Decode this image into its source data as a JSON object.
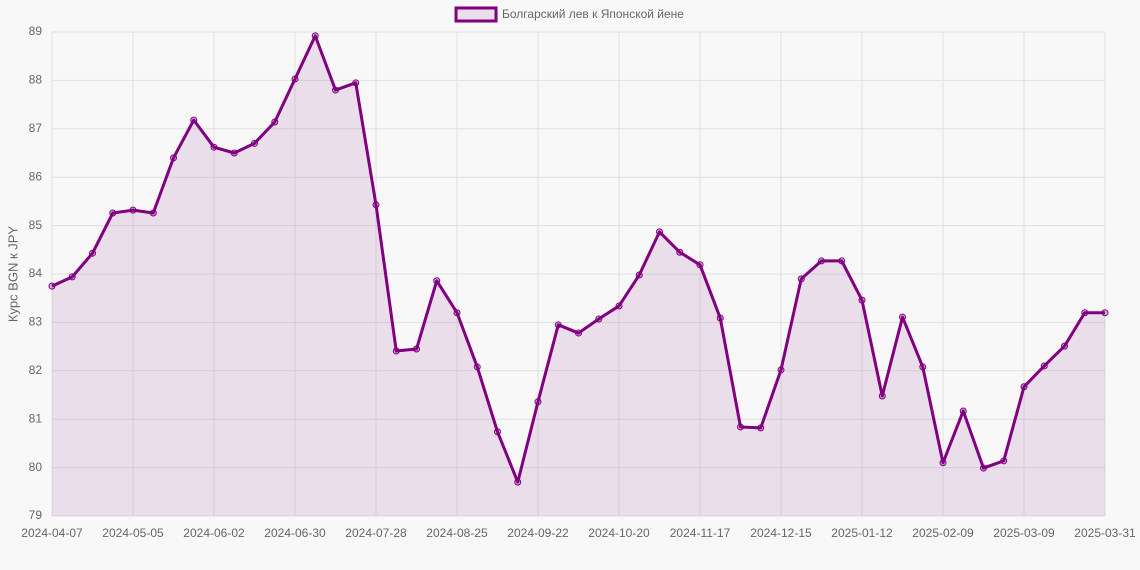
{
  "chart_data": {
    "type": "line",
    "y_label": "Курс BGN к JPY",
    "categories": [
      "2024-04-07",
      null,
      null,
      null,
      "2024-05-05",
      null,
      null,
      null,
      "2024-06-02",
      null,
      null,
      null,
      "2024-06-30",
      null,
      null,
      null,
      "2024-07-28",
      null,
      null,
      null,
      "2024-08-25",
      null,
      null,
      null,
      "2024-09-22",
      null,
      null,
      null,
      "2024-10-20",
      null,
      null,
      null,
      "2024-11-17",
      null,
      null,
      null,
      "2024-12-15",
      null,
      null,
      null,
      "2025-01-12",
      null,
      null,
      null,
      "2025-02-09",
      null,
      null,
      null,
      "2025-03-09",
      null,
      null,
      null,
      "2025-03-31"
    ],
    "series": [
      {
        "name": "Болгарский лев к Японской йене",
        "color": "#800080",
        "values": [
          83.75,
          83.94,
          84.43,
          85.26,
          85.32,
          85.26,
          86.4,
          87.18,
          86.62,
          86.5,
          86.7,
          87.14,
          88.03,
          88.92,
          87.8,
          87.95,
          85.43,
          82.41,
          82.45,
          83.86,
          83.2,
          82.08,
          80.74,
          79.7,
          81.36,
          82.95,
          82.78,
          83.07,
          83.34,
          83.98,
          84.87,
          84.45,
          84.19,
          83.09,
          80.84,
          80.82,
          82.02,
          83.9,
          84.27,
          84.27,
          83.46,
          81.48,
          83.11,
          82.08,
          80.1,
          81.17,
          79.99,
          80.14,
          81.67,
          82.1,
          82.51,
          83.2,
          83.2
        ]
      }
    ],
    "ylim": [
      79,
      89
    ],
    "yticks": [
      79,
      80,
      81,
      82,
      83,
      84,
      85,
      86,
      87,
      88,
      89
    ],
    "grid": true,
    "legend": "top"
  }
}
